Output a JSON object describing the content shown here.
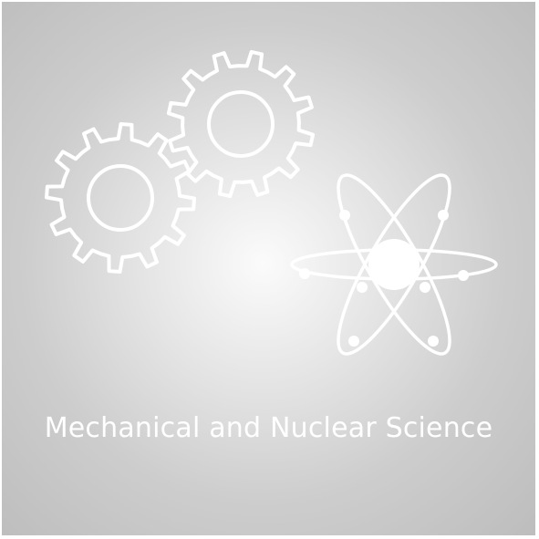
{
  "caption": "Mechanical and Nuclear Science",
  "icons": [
    "gear-icon",
    "gear-icon",
    "atom-icon"
  ],
  "colors": {
    "background_center": "#fbfbfb",
    "background_edge": "#bdbdbd",
    "foreground": "#ffffff"
  }
}
